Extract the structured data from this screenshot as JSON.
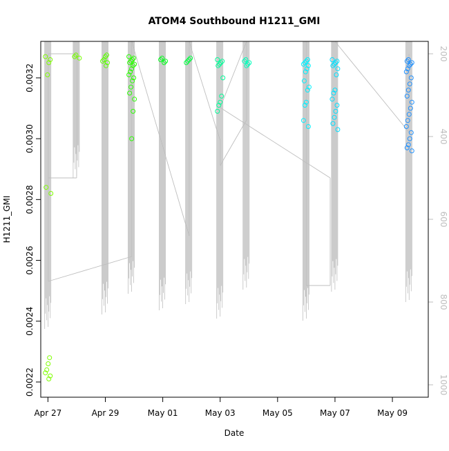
{
  "chart_data": {
    "type": "scatter",
    "title": "ATOM4 Southbound H1211_GMI",
    "xlabel": "Date",
    "ylabel": "H1211_GMI",
    "xlim": [
      "2016-04-26 18:00",
      "2016-05-10 06:00"
    ],
    "ylim": [
      0.00215,
      0.00332
    ],
    "y2lim_inverted": [
      1030,
      170
    ],
    "x_ticks": [
      {
        "date": "2016-04-27",
        "label": "Apr 27"
      },
      {
        "date": "2016-04-29",
        "label": "Apr 29"
      },
      {
        "date": "2016-05-01",
        "label": "May 01"
      },
      {
        "date": "2016-05-03",
        "label": "May 03"
      },
      {
        "date": "2016-05-05",
        "label": "May 05"
      },
      {
        "date": "2016-05-07",
        "label": "May 07"
      },
      {
        "date": "2016-05-09",
        "label": "May 09"
      }
    ],
    "y_ticks": [
      {
        "value": 0.0022,
        "label": "0.0022"
      },
      {
        "value": 0.0024,
        "label": "0.0024"
      },
      {
        "value": 0.0026,
        "label": "0.0026"
      },
      {
        "value": 0.0028,
        "label": "0.0028"
      },
      {
        "value": 0.003,
        "label": "0.0030"
      },
      {
        "value": 0.0032,
        "label": "0.0032"
      }
    ],
    "y2_ticks": [
      {
        "value": 200,
        "label": "200"
      },
      {
        "value": 400,
        "label": "400"
      },
      {
        "value": 600,
        "label": "600"
      },
      {
        "value": 800,
        "label": "800"
      },
      {
        "value": 1000,
        "label": "1000"
      }
    ],
    "colors": {
      "pressure_line": "#bebebe",
      "point_gradient": [
        "#7fff00",
        "#00ff00",
        "#00ffcc",
        "#00e5ff",
        "#1e90ff"
      ],
      "axis": "#000000",
      "y2_axis": "#bebebe"
    },
    "flights": [
      {
        "date": "2016-04-27 00:10",
        "color": "#7fff00",
        "values": [
          0.00327,
          0.00326,
          0.00325,
          0.00321,
          0.00284,
          0.00282,
          0.00228,
          0.00226,
          0.00224,
          0.00223,
          0.00222,
          0.00221
        ],
        "pressure_max": 865
      },
      {
        "date": "2016-04-28 00:00",
        "color": "#76ff00",
        "values": [
          0.003275,
          0.00327,
          0.003265
        ],
        "pressure_max": 500
      },
      {
        "date": "2016-04-29 00:00",
        "color": "#5cff00",
        "values": [
          0.003275,
          0.00327,
          0.00326,
          0.003255,
          0.00325,
          0.00324
        ],
        "pressure_max": 830
      },
      {
        "date": "2016-04-29 22:00",
        "color": "#2aff00",
        "values": [
          0.00327,
          0.003265,
          0.00326,
          0.003255,
          0.00325,
          0.003245,
          0.00324,
          0.00323,
          0.00322,
          0.00321,
          0.0032,
          0.00319,
          0.00317,
          0.00315,
          0.00313,
          0.00309,
          0.003
        ],
        "pressure_max": 780
      },
      {
        "date": "2016-05-01 00:00",
        "color": "#00ff1a",
        "values": [
          0.003265,
          0.00326,
          0.003255,
          0.00325
        ],
        "pressure_max": 820
      },
      {
        "date": "2016-05-01 22:00",
        "color": "#00ff40",
        "values": [
          0.003265,
          0.00326,
          0.003255,
          0.00325
        ],
        "pressure_max": 805
      },
      {
        "date": "2016-05-03 00:00",
        "color": "#00ff99",
        "values": [
          0.00326,
          0.003255,
          0.00325,
          0.003245,
          0.00324,
          0.0032,
          0.00314,
          0.00312,
          0.00311,
          0.00309
        ],
        "pressure_max": 840
      },
      {
        "date": "2016-05-03 22:00",
        "color": "#00ffbb",
        "values": [
          0.00326,
          0.003255,
          0.00325,
          0.003245,
          0.00324
        ],
        "pressure_max": 770
      },
      {
        "date": "2016-05-06 00:00",
        "color": "#00f0ff",
        "values": [
          0.00326,
          0.003255,
          0.00325,
          0.003245,
          0.00324,
          0.00323,
          0.00322,
          0.00319,
          0.00317,
          0.00316,
          0.00312,
          0.00311,
          0.00306,
          0.00304
        ],
        "pressure_max": 845
      },
      {
        "date": "2016-05-07 00:00",
        "color": "#00e0ff",
        "values": [
          0.00326,
          0.003255,
          0.00325,
          0.003245,
          0.00324,
          0.00323,
          0.00321,
          0.00316,
          0.00315,
          0.00313,
          0.00311,
          0.00309,
          0.00307,
          0.00305,
          0.00303
        ],
        "pressure_max": 775
      },
      {
        "date": "2016-05-09 14:00",
        "color": "#1e90ff",
        "values": [
          0.00326,
          0.003255,
          0.00325,
          0.003245,
          0.00324,
          0.00323,
          0.00322,
          0.0032,
          0.00318,
          0.00316,
          0.00314,
          0.00312,
          0.0031,
          0.00308,
          0.00306,
          0.00304,
          0.00302,
          0.003,
          0.00298,
          0.00297,
          0.00296
        ],
        "pressure_max": 800
      }
    ],
    "transit_path": [
      [
        "2016-04-27 00:10",
        500
      ],
      [
        "2016-04-28 00:00",
        500
      ],
      [
        "2016-04-28 00:00",
        200
      ],
      [
        "2016-04-27 00:10",
        200
      ],
      [
        "2016-04-27 00:10",
        750
      ],
      [
        "2016-04-29 22:00",
        690
      ],
      [
        "2016-04-29 22:00",
        160
      ],
      [
        "2016-05-01 22:00",
        640
      ],
      [
        "2016-05-01 22:00",
        160
      ],
      [
        "2016-05-03 00:00",
        410
      ],
      [
        "2016-05-03 00:00",
        470
      ],
      [
        "2016-05-03 22:00",
        360
      ],
      [
        "2016-05-03 22:00",
        160
      ],
      [
        "2016-05-03 00:00",
        330
      ],
      [
        "2016-05-06 20:00",
        500
      ],
      [
        "2016-05-06 20:00",
        760
      ],
      [
        "2016-05-06 00:00",
        760
      ],
      [
        "2016-05-06 00:00",
        160
      ],
      [
        "2016-05-07 00:00",
        160
      ],
      [
        "2016-05-09 14:00",
        390
      ],
      [
        "2016-05-09 14:00",
        200
      ]
    ]
  }
}
